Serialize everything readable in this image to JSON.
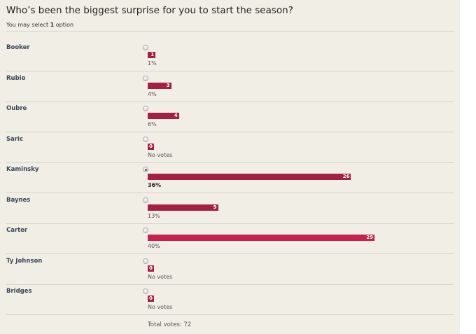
{
  "poll": {
    "question": "Who’s been the biggest surprise for you to start the season?",
    "select_note_prefix": "You may select ",
    "select_note_count": "1",
    "select_note_suffix": " option",
    "total_votes": "Total votes: 72",
    "max_votes": 29,
    "options": [
      {
        "name": "Booker",
        "votes": 1,
        "votes_label": "1",
        "percent": "1%",
        "selected": false
      },
      {
        "name": "Rubio",
        "votes": 3,
        "votes_label": "3",
        "percent": "4%",
        "selected": false
      },
      {
        "name": "Oubre",
        "votes": 4,
        "votes_label": "4",
        "percent": "6%",
        "selected": false
      },
      {
        "name": "Saric",
        "votes": 0,
        "votes_label": "0",
        "percent": "No votes",
        "selected": false
      },
      {
        "name": "Kaminsky",
        "votes": 26,
        "votes_label": "26",
        "percent": "36%",
        "selected": true
      },
      {
        "name": "Baynes",
        "votes": 9,
        "votes_label": "9",
        "percent": "13%",
        "selected": false
      },
      {
        "name": "Carter",
        "votes": 29,
        "votes_label": "29",
        "percent": "40%",
        "selected": false
      },
      {
        "name": "Ty Johnson",
        "votes": 0,
        "votes_label": "0",
        "percent": "No votes",
        "selected": false
      },
      {
        "name": "Bridges",
        "votes": 0,
        "votes_label": "0",
        "percent": "No votes",
        "selected": false
      }
    ]
  },
  "colors": {
    "background": "#f1eee6",
    "bar": "#a42043",
    "bar_leading": "#c81f4e"
  }
}
